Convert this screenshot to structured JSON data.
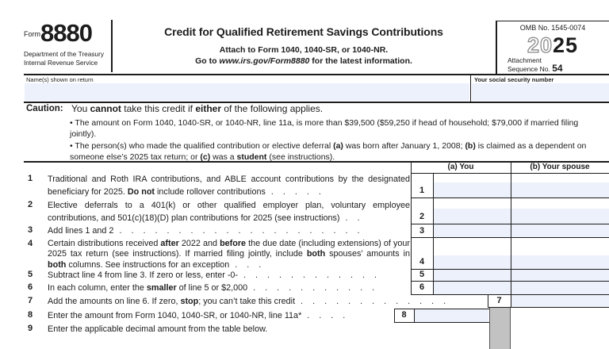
{
  "header": {
    "form_word": "Form",
    "form_number": "8880",
    "dept_line1": "Department of the Treasury",
    "dept_line2": "Internal Revenue Service",
    "title": "Credit for Qualified Retirement Savings Contributions",
    "attach_line": "Attach to Form 1040, 1040-SR, or 1040-NR.",
    "goto_rich": [
      {
        "t": "Go to "
      },
      {
        "t": "www.irs.gov/Form8880",
        "b": true,
        "i": true
      },
      {
        "t": " for the latest information."
      }
    ],
    "omb": "OMB No. 1545-0074",
    "year_outline": "20",
    "year_bold": "25",
    "attachment_line1": "Attachment",
    "attachment_line2": "Sequence No. ",
    "attachment_number": "54"
  },
  "name_row": {
    "name_label": "Name(s) shown on return",
    "ssn_label": "Your social security number"
  },
  "caution": {
    "label": "Caution:",
    "intro_rich": [
      {
        "t": "You "
      },
      {
        "t": "cannot",
        "b": true
      },
      {
        "t": " take this credit if "
      },
      {
        "t": "either",
        "b": true
      },
      {
        "t": " of the following applies."
      }
    ],
    "bullet1_rich": [
      {
        "t": "• The amount on Form 1040, 1040-SR, or 1040-NR, line 11a, is more than $39,500 ($59,250 if head of household; $79,000 if married filing jointly)."
      }
    ],
    "bullet2_rich": [
      {
        "t": "• The person(s) who made the qualified contribution or elective deferral "
      },
      {
        "t": "(a)",
        "b": true
      },
      {
        "t": " was born after January 1, 2008; "
      },
      {
        "t": "(b)",
        "b": true
      },
      {
        "t": " is claimed as a dependent on someone else’s 2025 tax return; or "
      },
      {
        "t": "(c)",
        "b": true
      },
      {
        "t": " was a "
      },
      {
        "t": "student",
        "b": true
      },
      {
        "t": " (see instructions)."
      }
    ]
  },
  "table": {
    "col_a_header": "(a) You",
    "col_b_header": "(b) Your spouse"
  },
  "lines": [
    {
      "no": "1",
      "rich": [
        {
          "t": "Traditional and Roth IRA contributions, and ABLE account contributions by the designated beneficiary for 2025. "
        },
        {
          "t": "Do not",
          "b": true
        },
        {
          "t": " include rollover contributions"
        },
        {
          "t": ".....",
          "d": true
        }
      ]
    },
    {
      "no": "2",
      "rich": [
        {
          "t": "Elective deferrals to a 401(k) or other qualified employer plan, voluntary employee contributions, and 501(c)(18)(D) plan contributions for 2025 (see instructions)"
        },
        {
          "t": "..",
          "d": true
        }
      ]
    },
    {
      "no": "3",
      "rich": [
        {
          "t": "Add lines 1 and 2"
        },
        {
          "t": ".....................",
          "d": true
        }
      ]
    },
    {
      "no": "4",
      "rich": [
        {
          "t": "Certain distributions received "
        },
        {
          "t": "after",
          "b": true
        },
        {
          "t": " 2022 and "
        },
        {
          "t": "before",
          "b": true
        },
        {
          "t": " the due date (including extensions) of your 2025 tax return (see instructions). If married filing jointly, include "
        },
        {
          "t": "both",
          "b": true
        },
        {
          "t": " spouses’ amounts in "
        },
        {
          "t": "both",
          "b": true
        },
        {
          "t": " columns. See instructions for an exception"
        },
        {
          "t": "...",
          "d": true
        }
      ]
    },
    {
      "no": "5",
      "rich": [
        {
          "t": "Subtract line 4 from line 3. If zero or less, enter -0-"
        },
        {
          "t": "............",
          "d": true
        }
      ]
    },
    {
      "no": "6",
      "rich": [
        {
          "t": "In each column, enter the "
        },
        {
          "t": "smaller",
          "b": true
        },
        {
          "t": " of line 5 or $2,000"
        },
        {
          "t": "...........",
          "d": true
        }
      ]
    },
    {
      "no": "7",
      "rich": [
        {
          "t": "Add the amounts on line 6. If zero, "
        },
        {
          "t": "stop",
          "b": true
        },
        {
          "t": "; you can’t take this credit"
        },
        {
          "t": ".............",
          "d": true
        }
      ]
    },
    {
      "no": "8",
      "rich": [
        {
          "t": "Enter the amount from Form 1040, 1040-SR, or 1040-NR, line 11a*"
        },
        {
          "t": "....",
          "d": true
        }
      ]
    },
    {
      "no": "9",
      "rich": [
        {
          "t": "Enter the applicable decimal amount from the table below."
        }
      ]
    }
  ]
}
